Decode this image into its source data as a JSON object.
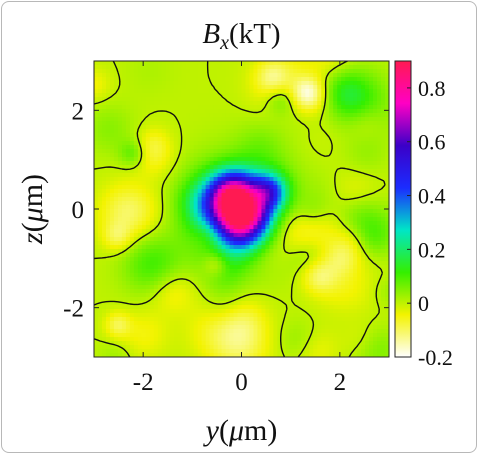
{
  "chart_data": {
    "type": "heatmap",
    "title": {
      "symbol": "B",
      "subscript": "x",
      "unit": "(kT)"
    },
    "xlabel": {
      "symbol": "y",
      "unit_open": "(",
      "mu": "μ",
      "unit_rest": "m)"
    },
    "ylabel": {
      "symbol": "z",
      "unit_open": "(",
      "mu": "μ",
      "unit_rest": "m)"
    },
    "xlim": [
      -3,
      3
    ],
    "ylim": [
      -3,
      3
    ],
    "x_ticks": [
      -2,
      0,
      2
    ],
    "y_ticks": [
      -2,
      0,
      2
    ],
    "x_tick_labels": [
      "-2",
      "0",
      "2"
    ],
    "y_tick_labels": [
      "-2",
      "0",
      "2"
    ],
    "colorbar": {
      "range": [
        -0.2,
        0.9
      ],
      "ticks": [
        -0.2,
        0,
        0.2,
        0.4,
        0.6,
        0.8
      ],
      "tick_labels": [
        "-0.2",
        "0",
        "0.2",
        "0.4",
        "0.6",
        "0.8"
      ]
    },
    "contour_level": 0,
    "colors": {
      "background_field": "#3df000",
      "contour": "#111111",
      "colormap": [
        "#ffffff",
        "#f3f300",
        "#34ef00",
        "#00e6c6",
        "#1b2cff",
        "#3b00c8",
        "#ff00c4",
        "#ff1a52"
      ]
    }
  }
}
